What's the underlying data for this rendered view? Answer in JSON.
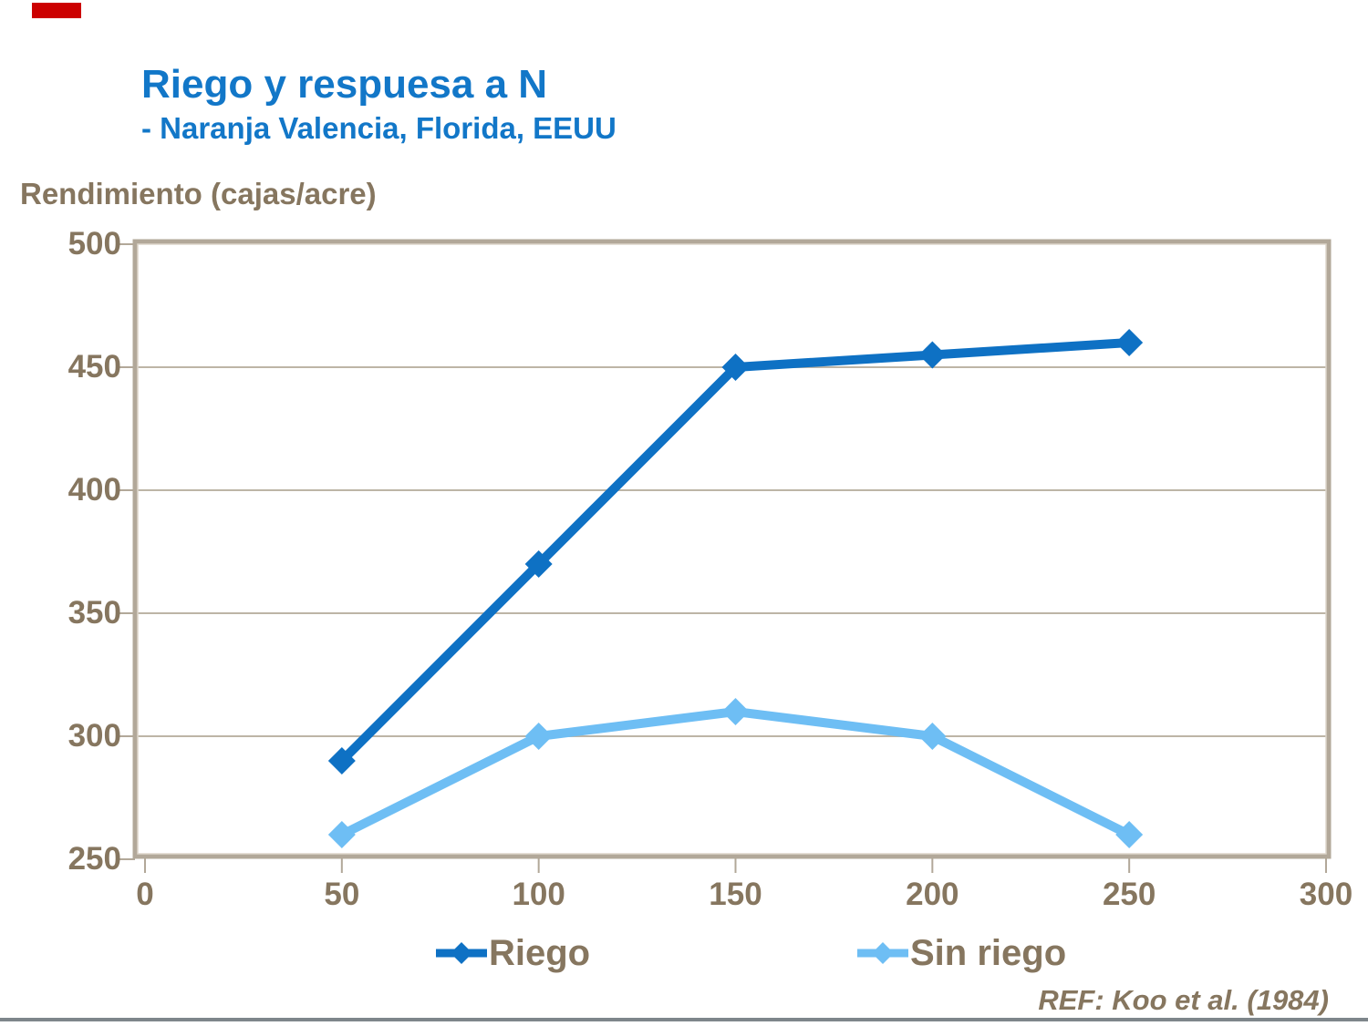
{
  "slide": {
    "title": "Riego y respuesa a N",
    "subtitle": "- Naranja Valencia, Florida, EEUU",
    "axis_title": "Rendimiento (cajas/acre)",
    "ref": "REF: Koo et al. (1984)",
    "title_color": "#1277c8",
    "text_color": "#86765f",
    "marker_color": "#cc0000"
  },
  "chart_data": {
    "type": "line",
    "title": "Riego y respuesa a N - Naranja Valencia, Florida, EEUU",
    "ylabel": "Rendimiento (cajas/acre)",
    "xlabel": "",
    "x": [
      50,
      100,
      150,
      200,
      250
    ],
    "series": [
      {
        "name": "Riego",
        "color": "#0e71c4",
        "values": [
          290,
          370,
          450,
          455,
          460
        ]
      },
      {
        "name": "Sin riego",
        "color": "#6ebef4",
        "values": [
          260,
          300,
          310,
          300,
          260
        ]
      }
    ],
    "xlim": [
      0,
      300
    ],
    "ylim": [
      250,
      500
    ],
    "x_ticks": [
      0,
      50,
      100,
      150,
      200,
      250,
      300
    ],
    "y_ticks": [
      250,
      300,
      350,
      400,
      450,
      500
    ],
    "grid": "horizontal",
    "gridline_values": [
      300,
      350,
      400,
      450
    ],
    "frame_color": "#b2a899",
    "gridline_color": "#bdb5a6",
    "legend_position": "bottom",
    "marker": "diamond"
  },
  "legend": {
    "items": [
      {
        "label": "Riego",
        "color": "#0e71c4"
      },
      {
        "label": "Sin riego",
        "color": "#6ebef4"
      }
    ]
  }
}
